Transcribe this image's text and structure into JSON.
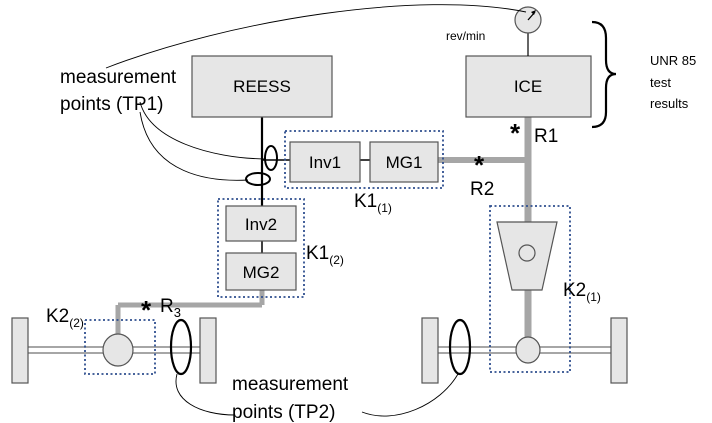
{
  "components": {
    "reess": "REESS",
    "ice": "ICE",
    "inv1": "Inv1",
    "mg1": "MG1",
    "inv2": "Inv2",
    "mg2": "MG2"
  },
  "labels": {
    "rev_min": "rev/min",
    "unr85": [
      "UNR 85",
      "test",
      "results"
    ],
    "tp1": [
      "measurement",
      "points (TP1)"
    ],
    "tp2": [
      "measurement",
      "points (TP2)"
    ],
    "r1": "R1",
    "r2": "R2",
    "r3_base": "R",
    "r3_sub": "3",
    "k1_1_base": "K1",
    "k1_1_sub": "(1)",
    "k1_2_base": "K1",
    "k1_2_sub": "(2)",
    "k2_1_base": "K2",
    "k2_1_sub": "(1)",
    "k2_2_base": "K2",
    "k2_2_sub": "(2)",
    "asterisk": "*"
  },
  "colors": {
    "box_fill": "#e6e6e6",
    "shaft": "#a6a6a6",
    "dotted_border": "#2f4f8f"
  }
}
